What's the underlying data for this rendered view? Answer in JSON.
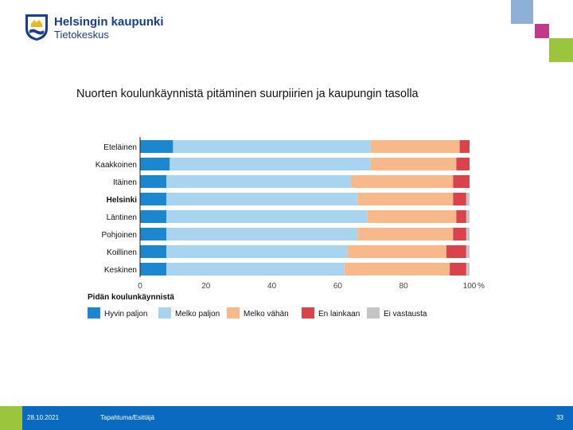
{
  "header": {
    "org_name": "Helsingin kaupunki",
    "org_unit": "Tietokeskus"
  },
  "slide": {
    "title": "Nuorten koulunkäynnistä pitäminen suurpiirien ja kaupungin tasolla"
  },
  "footer": {
    "date": "28.10.2021",
    "center_text": "Tapahtuma/Esittäjä",
    "page_number": "33"
  },
  "colors": {
    "accent_blue": "#0a6ac0",
    "accent_green": "#9bc53d",
    "accent_magenta": "#c2388a",
    "accent_lightblue": "#8fb0d6"
  },
  "chart_data": {
    "type": "bar",
    "orientation": "horizontal",
    "stacked": true,
    "categories": [
      "Eteläinen",
      "Kaakkoinen",
      "Itäinen",
      "Helsinki",
      "Läntinen",
      "Pohjoinen",
      "Koillinen",
      "Keskinen"
    ],
    "bold_categories": [
      "Helsinki"
    ],
    "series": [
      {
        "name": "Hyvin paljon",
        "color": "#1a87cf",
        "values": [
          10,
          9,
          8,
          8,
          8,
          8,
          8,
          8
        ]
      },
      {
        "name": "Melko paljon",
        "color": "#a8d4f0",
        "values": [
          60,
          61,
          56,
          58,
          61,
          58,
          55,
          54
        ]
      },
      {
        "name": "Melko vähän",
        "color": "#f7b98a",
        "values": [
          27,
          26,
          31,
          29,
          27,
          29,
          30,
          32
        ]
      },
      {
        "name": "En lainkaan",
        "color": "#d9434b",
        "values": [
          3,
          4,
          5,
          4,
          3,
          4,
          6,
          5
        ]
      },
      {
        "name": "Ei vastausta",
        "color": "#c4c4c4",
        "values": [
          0,
          0,
          0,
          1,
          1,
          1,
          1,
          1
        ]
      }
    ],
    "xticks": [
      "0",
      "20",
      "40",
      "60",
      "80",
      "100"
    ],
    "xlim": [
      0,
      100
    ],
    "xunit": "%",
    "legend_title": "Pidän koulunkäynnistä",
    "legend_position": "bottom-left"
  }
}
